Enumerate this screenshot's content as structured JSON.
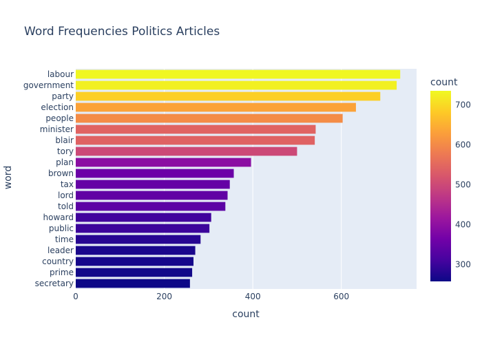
{
  "chart_data": {
    "type": "bar",
    "orientation": "horizontal",
    "title": "Word Frequencies Politics Articles",
    "xlabel": "count",
    "ylabel": "word",
    "xlim": [
      0,
      770
    ],
    "xticks": [
      0,
      200,
      400,
      600
    ],
    "grid": true,
    "colorbar": {
      "title": "count",
      "range": [
        258,
        735
      ],
      "ticks": [
        300,
        400,
        500,
        600,
        700
      ],
      "colorscale": [
        "#0d0887",
        "#46039f",
        "#7201a8",
        "#9c179e",
        "#bd3786",
        "#d8576b",
        "#ed7953",
        "#fb9f3a",
        "#fdca26",
        "#f0f921"
      ]
    },
    "categories": [
      "labour",
      "government",
      "party",
      "election",
      "people",
      "minister",
      "blair",
      "tory",
      "plan",
      "brown",
      "tax",
      "lord",
      "told",
      "howard",
      "public",
      "time",
      "leader",
      "country",
      "prime",
      "secretary"
    ],
    "values": [
      733,
      725,
      688,
      633,
      603,
      542,
      540,
      500,
      396,
      357,
      348,
      343,
      338,
      306,
      302,
      282,
      270,
      266,
      263,
      258
    ]
  }
}
